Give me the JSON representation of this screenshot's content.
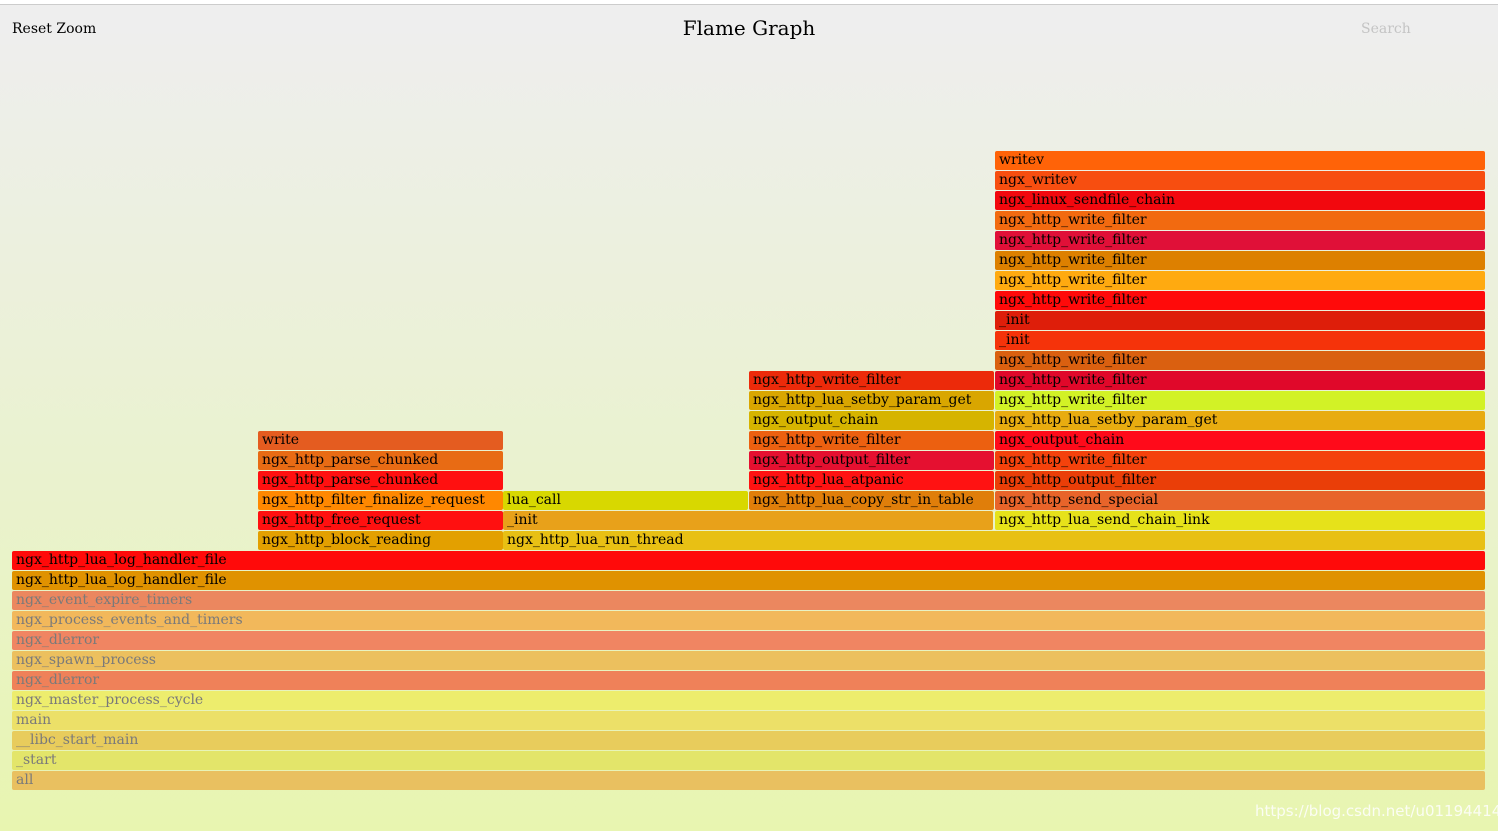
{
  "header": {
    "reset_zoom_label": "Reset Zoom",
    "title": "Flame Graph",
    "search_label": "Search"
  },
  "watermark": "https://blog.csdn.net/u011944141",
  "frames": [
    {
      "label": "all",
      "depth": 0,
      "start": 0,
      "width": 1,
      "color": "#e9c060",
      "faded": true
    },
    {
      "label": "_start",
      "depth": 1,
      "start": 0,
      "width": 1,
      "color": "#e3e56a",
      "faded": true
    },
    {
      "label": "__libc_start_main",
      "depth": 2,
      "start": 0,
      "width": 1,
      "color": "#e8cc5c",
      "faded": true
    },
    {
      "label": "main",
      "depth": 3,
      "start": 0,
      "width": 1,
      "color": "#ece068",
      "faded": true
    },
    {
      "label": "ngx_master_process_cycle",
      "depth": 4,
      "start": 0,
      "width": 1,
      "color": "#eded6d",
      "faded": true
    },
    {
      "label": "ngx_dlerror",
      "depth": 5,
      "start": 0,
      "width": 1,
      "color": "#ef8159",
      "faded": true
    },
    {
      "label": "ngx_spawn_process",
      "depth": 6,
      "start": 0,
      "width": 1,
      "color": "#ecc05e",
      "faded": true
    },
    {
      "label": "ngx_dlerror",
      "depth": 7,
      "start": 0,
      "width": 1,
      "color": "#f08562",
      "faded": true
    },
    {
      "label": "ngx_process_events_and_timers",
      "depth": 8,
      "start": 0,
      "width": 1,
      "color": "#f2b85b",
      "faded": true
    },
    {
      "label": "ngx_event_expire_timers",
      "depth": 9,
      "start": 0,
      "width": 1,
      "color": "#eb875f",
      "faded": true
    },
    {
      "label": "ngx_http_lua_log_handler_file",
      "depth": 10,
      "start": 0,
      "width": 1,
      "color": "#e09200",
      "faded": false
    },
    {
      "label": "ngx_http_lua_log_handler_file",
      "depth": 11,
      "start": 0,
      "width": 1,
      "color": "#ff0a0a",
      "faded": false
    },
    {
      "label": "ngx_http_block_reading",
      "depth": 12,
      "start": 0.1667,
      "width": 0.1667,
      "color": "#e3a000",
      "faded": false
    },
    {
      "label": "ngx_http_free_request",
      "depth": 13,
      "start": 0.1667,
      "width": 0.1667,
      "color": "#ff1010",
      "faded": false
    },
    {
      "label": "ngx_http_filter_finalize_request",
      "depth": 14,
      "start": 0.1667,
      "width": 0.1667,
      "color": "#ff8800",
      "faded": false
    },
    {
      "label": "ngx_http_parse_chunked",
      "depth": 15,
      "start": 0.1667,
      "width": 0.1667,
      "color": "#ff1010",
      "faded": false
    },
    {
      "label": "ngx_http_parse_chunked",
      "depth": 16,
      "start": 0.1667,
      "width": 0.1667,
      "color": "#e86b14",
      "faded": false
    },
    {
      "label": "write",
      "depth": 17,
      "start": 0.1667,
      "width": 0.1667,
      "color": "#e45c20",
      "faded": false
    },
    {
      "label": "ngx_http_lua_run_thread",
      "depth": 12,
      "start": 0.3333,
      "width": 0.6667,
      "color": "#e8c014",
      "faded": false
    },
    {
      "label": "_init",
      "depth": 13,
      "start": 0.3333,
      "width": 0.3333,
      "color": "#e8a11a",
      "faded": false
    },
    {
      "label": "lua_call",
      "depth": 14,
      "start": 0.3333,
      "width": 0.1667,
      "color": "#d8d800",
      "faded": false
    },
    {
      "label": "ngx_http_lua_copy_str_in_table",
      "depth": 14,
      "start": 0.5,
      "width": 0.1667,
      "color": "#e07e0a",
      "faded": false
    },
    {
      "label": "ngx_http_lua_atpanic",
      "depth": 15,
      "start": 0.5,
      "width": 0.1667,
      "color": "#ff1212",
      "faded": false
    },
    {
      "label": "ngx_http_output_filter",
      "depth": 16,
      "start": 0.5,
      "width": 0.1667,
      "color": "#e51030",
      "faded": false
    },
    {
      "label": "ngx_http_write_filter",
      "depth": 17,
      "start": 0.5,
      "width": 0.1667,
      "color": "#ec6010",
      "faded": false
    },
    {
      "label": "ngx_output_chain",
      "depth": 18,
      "start": 0.5,
      "width": 0.1667,
      "color": "#d6b400",
      "faded": false
    },
    {
      "label": "ngx_http_lua_setby_param_get",
      "depth": 19,
      "start": 0.5,
      "width": 0.1667,
      "color": "#d9a600",
      "faded": false
    },
    {
      "label": "ngx_http_write_filter",
      "depth": 20,
      "start": 0.5,
      "width": 0.1667,
      "color": "#ec2a0a",
      "faded": false
    },
    {
      "label": "ngx_http_lua_send_chain_link",
      "depth": 13,
      "start": 0.6667,
      "width": 0.3333,
      "color": "#e6e21a",
      "faded": false
    },
    {
      "label": "ngx_http_send_special",
      "depth": 14,
      "start": 0.6667,
      "width": 0.3333,
      "color": "#e8642a",
      "faded": false
    },
    {
      "label": "ngx_http_output_filter",
      "depth": 15,
      "start": 0.6667,
      "width": 0.3333,
      "color": "#ea3e08",
      "faded": false
    },
    {
      "label": "ngx_http_write_filter",
      "depth": 16,
      "start": 0.6667,
      "width": 0.3333,
      "color": "#f4420c",
      "faded": false
    },
    {
      "label": "ngx_output_chain",
      "depth": 17,
      "start": 0.6667,
      "width": 0.3333,
      "color": "#ff0a1a",
      "faded": false
    },
    {
      "label": "ngx_http_lua_setby_param_get",
      "depth": 18,
      "start": 0.6667,
      "width": 0.3333,
      "color": "#e8ac10",
      "faded": false
    },
    {
      "label": "ngx_http_write_filter",
      "depth": 19,
      "start": 0.6667,
      "width": 0.3333,
      "color": "#d2f226",
      "faded": false
    },
    {
      "label": "ngx_http_write_filter",
      "depth": 20,
      "start": 0.6667,
      "width": 0.3333,
      "color": "#e0082a",
      "faded": false
    },
    {
      "label": "ngx_http_write_filter",
      "depth": 21,
      "start": 0.6667,
      "width": 0.3333,
      "color": "#da6010",
      "faded": false
    },
    {
      "label": "_init",
      "depth": 22,
      "start": 0.6667,
      "width": 0.3333,
      "color": "#f5330a",
      "faded": false
    },
    {
      "label": "_init",
      "depth": 23,
      "start": 0.6667,
      "width": 0.3333,
      "color": "#de1e0a",
      "faded": false
    },
    {
      "label": "ngx_http_write_filter",
      "depth": 24,
      "start": 0.6667,
      "width": 0.3333,
      "color": "#ff0a0a",
      "faded": false
    },
    {
      "label": "ngx_http_write_filter",
      "depth": 25,
      "start": 0.6667,
      "width": 0.3333,
      "color": "#ffaa10",
      "faded": false
    },
    {
      "label": "ngx_http_write_filter",
      "depth": 26,
      "start": 0.6667,
      "width": 0.3333,
      "color": "#dd8000",
      "faded": false
    },
    {
      "label": "ngx_http_write_filter",
      "depth": 27,
      "start": 0.6667,
      "width": 0.3333,
      "color": "#e01038",
      "faded": false
    },
    {
      "label": "ngx_http_write_filter",
      "depth": 28,
      "start": 0.6667,
      "width": 0.3333,
      "color": "#f26a10",
      "faded": false
    },
    {
      "label": "ngx_linux_sendfile_chain",
      "depth": 29,
      "start": 0.6667,
      "width": 0.3333,
      "color": "#f2080e",
      "faded": false
    },
    {
      "label": "ngx_writev",
      "depth": 30,
      "start": 0.6667,
      "width": 0.3333,
      "color": "#f74e10",
      "faded": false
    },
    {
      "label": "writev",
      "depth": 31,
      "start": 0.6667,
      "width": 0.3333,
      "color": "#ff6308",
      "faded": false
    }
  ]
}
